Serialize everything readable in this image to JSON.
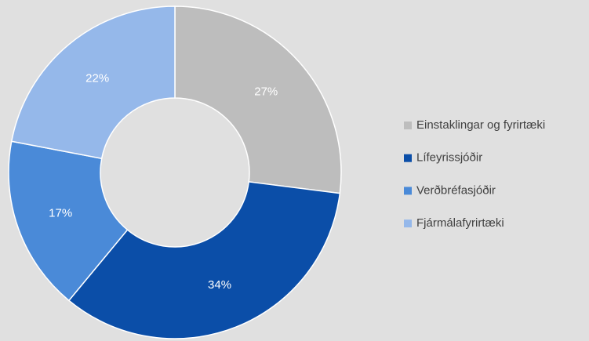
{
  "chart_data": {
    "type": "donut",
    "categories": [
      "Einstaklingar og fyrirtæki",
      "Lífeyrissjóðir",
      "Verðbréfasjóðir",
      "Fjármálafyrirtæki"
    ],
    "values": [
      27,
      34,
      17,
      22
    ],
    "value_labels": [
      "27%",
      "34%",
      "17%",
      "22%"
    ],
    "colors": [
      "#bdbdbd",
      "#0b4ea8",
      "#4a8ad8",
      "#95b8ea"
    ],
    "legend": "right"
  }
}
